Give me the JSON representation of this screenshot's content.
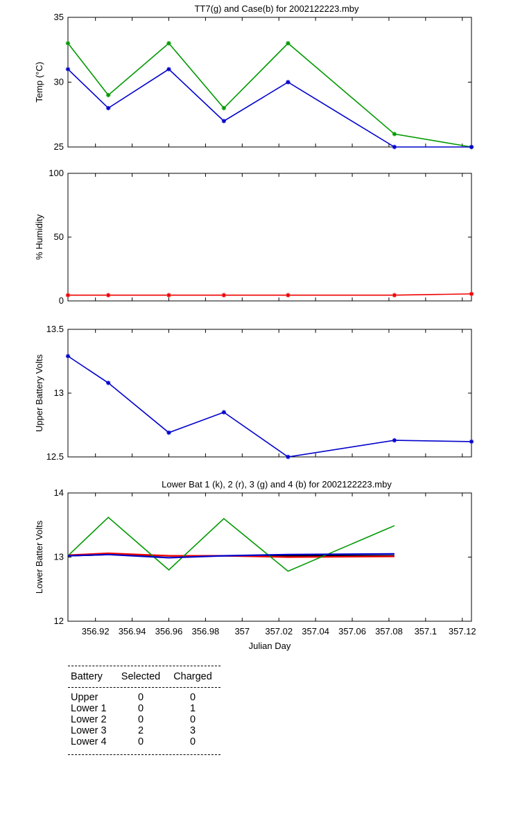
{
  "chart_data": [
    {
      "type": "line",
      "title": "TT7(g) and Case(b) for 2002122223.mby",
      "xlabel": "",
      "ylabel": "Temp  (°C)",
      "xlim": [
        356.905,
        357.125
      ],
      "ylim": [
        25,
        35
      ],
      "yticks": [
        25,
        30,
        35
      ],
      "x": [
        356.905,
        356.927,
        356.96,
        356.99,
        357.025,
        357.083,
        357.125
      ],
      "series": [
        {
          "color": "#009900",
          "marker": "*",
          "values": [
            33,
            29,
            33,
            28,
            33,
            26,
            25
          ]
        },
        {
          "color": "#0000cc",
          "marker": "*",
          "values": [
            31,
            28,
            31,
            27,
            30,
            25,
            25
          ]
        }
      ]
    },
    {
      "type": "line",
      "title": "",
      "xlabel": "",
      "ylabel": "% Humidity",
      "xlim": [
        356.905,
        357.125
      ],
      "ylim": [
        0,
        100
      ],
      "yticks": [
        0,
        50,
        100
      ],
      "x": [
        356.905,
        356.927,
        356.96,
        356.99,
        357.025,
        357.083,
        357.125
      ],
      "series": [
        {
          "color": "#ee0000",
          "marker": "*",
          "values": [
            4.5,
            4.5,
            4.5,
            4.5,
            4.5,
            4.5,
            5.5
          ]
        }
      ]
    },
    {
      "type": "line",
      "title": "",
      "xlabel": "",
      "ylabel": "Upper Battery Volts",
      "xlim": [
        356.905,
        357.125
      ],
      "ylim": [
        12.5,
        13.5
      ],
      "yticks": [
        12.5,
        13,
        13.5
      ],
      "yticklabels": [
        "12.5",
        "13",
        "13.5"
      ],
      "x": [
        356.905,
        356.927,
        356.96,
        356.99,
        357.025,
        357.083,
        357.125
      ],
      "series": [
        {
          "color": "#0000cc",
          "marker": "*",
          "values": [
            13.29,
            13.08,
            12.69,
            12.85,
            12.5,
            12.63,
            12.62
          ]
        }
      ]
    },
    {
      "type": "line",
      "title": "Lower Bat 1 (k), 2 (r), 3 (g) and 4 (b) for 2002122223.mby",
      "xlabel": "Julian Day",
      "ylabel": "Lower Batter Volts",
      "xlim": [
        356.905,
        357.125
      ],
      "ylim": [
        12,
        14
      ],
      "yticks": [
        12,
        13,
        14
      ],
      "xticks": [
        356.92,
        356.94,
        356.96,
        356.98,
        357,
        357.02,
        357.04,
        357.06,
        357.08,
        357.1,
        357.12
      ],
      "xticklabels": [
        "356.92",
        "356.94",
        "356.96",
        "356.98",
        "357",
        "357.02",
        "357.04",
        "357.06",
        "357.08",
        "357.1",
        "357.12"
      ],
      "x": [
        356.905,
        356.927,
        356.96,
        356.99,
        357.025,
        357.083
      ],
      "series": [
        {
          "color": "#000000",
          "values": [
            13.02,
            13.04,
            13.02,
            13.02,
            13.02,
            13.02
          ]
        },
        {
          "color": "#ee0000",
          "values": [
            13.03,
            13.06,
            13.02,
            13.02,
            13.0,
            13.01
          ]
        },
        {
          "color": "#009900",
          "values": [
            13.02,
            13.62,
            12.8,
            13.6,
            12.78,
            13.49
          ]
        },
        {
          "color": "#0000cc",
          "values": [
            13.02,
            13.04,
            12.99,
            13.02,
            13.04,
            13.05
          ]
        }
      ]
    }
  ],
  "status_table": {
    "headers": [
      "Battery",
      "Selected",
      "Charged"
    ],
    "rows": [
      [
        "Upper",
        "0",
        "0"
      ],
      [
        "Lower 1",
        "0",
        "1"
      ],
      [
        "Lower 2",
        "0",
        "0"
      ],
      [
        "Lower 3",
        "2",
        "3"
      ],
      [
        "Lower 4",
        "0",
        "0"
      ]
    ]
  }
}
